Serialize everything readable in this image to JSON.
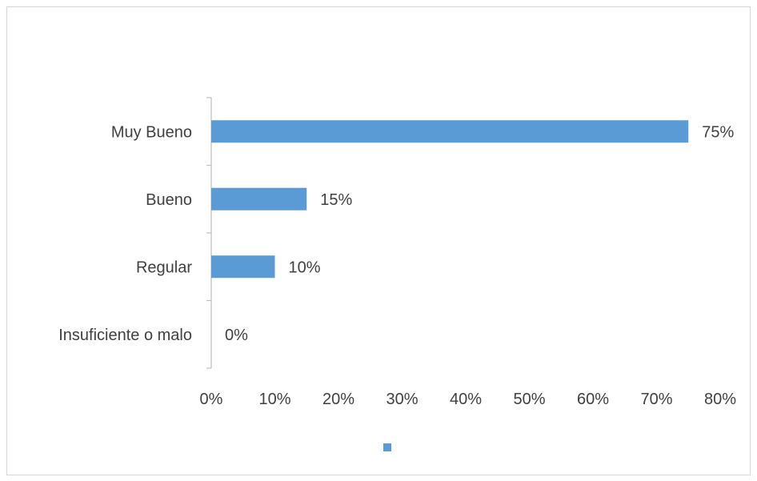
{
  "chart_data": {
    "type": "bar",
    "orientation": "horizontal",
    "title": "",
    "xlabel": "",
    "ylabel": "",
    "categories": [
      "Muy Bueno",
      "Bueno",
      "Regular",
      "Insuficiente o malo"
    ],
    "series": [
      {
        "values": [
          75,
          15,
          10,
          0
        ],
        "data_labels": [
          "75%",
          "15%",
          "10%",
          "0%"
        ],
        "color": "#5b9bd5"
      }
    ],
    "xlim": [
      0,
      80
    ],
    "x_ticks": [
      0,
      10,
      20,
      30,
      40,
      50,
      60,
      70,
      80
    ],
    "x_tick_labels": [
      "0%",
      "10%",
      "20%",
      "30%",
      "40%",
      "50%",
      "60%",
      "70%",
      "80%"
    ],
    "grid": false,
    "legend": {
      "position": "bottom",
      "entries": [
        {
          "label": "",
          "color": "#5b9bd5"
        }
      ]
    }
  }
}
